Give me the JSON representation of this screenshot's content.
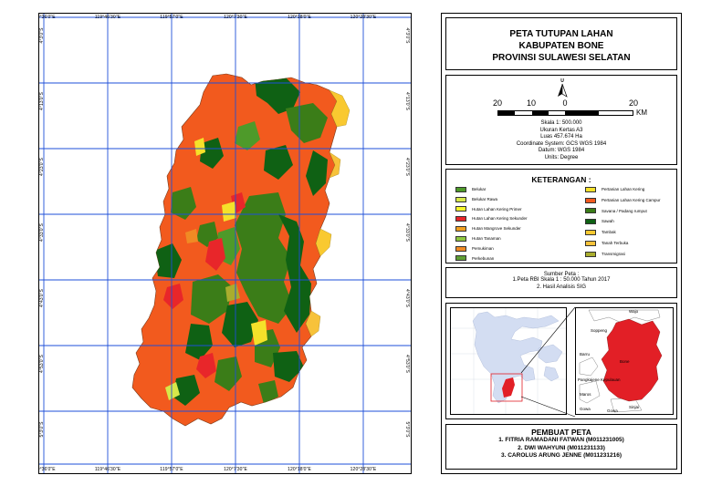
{
  "map": {
    "coords_top": [
      "119°36'0\"E",
      "119°46'30\"E",
      "119°57'0\"E",
      "120°7'30\"E",
      "120°18'0\"E",
      "120°28'30\"E"
    ],
    "coords_bottom": [
      "119°36'0\"E",
      "119°46'30\"E",
      "119°57'0\"E",
      "120°7'30\"E",
      "120°18'0\"E",
      "120°28'30\"E"
    ],
    "coords_left": [
      "4°3'0\"S",
      "4°13'0\"S",
      "4°23'0\"S",
      "4°33'0\"S",
      "4°43'0\"S",
      "4°53'0\"S",
      "5°3'0\"S",
      "5°13'0\"S"
    ],
    "coords_right": [
      "4°3'0\"S",
      "4°13'0\"S",
      "4°23'0\"S",
      "4°33'0\"S",
      "4°43'0\"S",
      "4°53'0\"S",
      "5°3'0\"S",
      "5°13'0\"S"
    ],
    "colors": {
      "grid": "#1e4fd8",
      "pertanian_campur": "#f25a1e",
      "savana": "#3b7d18",
      "sawah": "#0f6114",
      "belukar": "#4e9a2a",
      "pertanian_kering": "#f5e12a",
      "tanah_terbuka": "#f7c23a",
      "tambak": "#f9c930",
      "pemukiman": "#f08a24",
      "hutan_sekunder": "#e8262a",
      "transmigrasi": "#a9ad2e",
      "belukar_rawa": "#d6e84a"
    }
  },
  "title": {
    "line1": "PETA TUTUPAN LAHAN",
    "line2": "KABUPATEN BONE",
    "line3": "PROVINSI SULAWESI SELATAN"
  },
  "scale": {
    "north_label": "U",
    "labels": [
      "20",
      "10",
      "0",
      "20"
    ],
    "unit": "KM",
    "info": [
      "Skala 1: 500.000",
      "Ukuran Kertas A3",
      "Luas 457.674 Ha",
      "Coordinate System: GCS WGS 1984",
      "Datum: WGS 1984",
      "Units: Degree"
    ]
  },
  "legend": {
    "title": "KETERANGAN :",
    "left": [
      {
        "label": "Belukar",
        "color": "#4e9a2a"
      },
      {
        "label": "Belukar Rawa",
        "color": "#d6e84a"
      },
      {
        "label": "Hutan Lahan Kering Primer",
        "color": "#f5f52a"
      },
      {
        "label": "Hutan Lahan Kering Sekunder",
        "color": "#e8262a"
      },
      {
        "label": "Hutan Mangrove Sekunder",
        "color": "#f0a020"
      },
      {
        "label": "Hutan Tanaman",
        "color": "#8ec63f"
      },
      {
        "label": "Pemukiman",
        "color": "#f08a24"
      },
      {
        "label": "Perkebunan",
        "color": "#5f9e34"
      }
    ],
    "right": [
      {
        "label": "Pertanian Lahan Kering",
        "color": "#f5e12a"
      },
      {
        "label": "Pertanian Lahan Kering Campur",
        "color": "#f25a1e"
      },
      {
        "label": "Savana / Padang rumput",
        "color": "#3b7d18"
      },
      {
        "label": "Sawah",
        "color": "#0f6114"
      },
      {
        "label": "Tambak",
        "color": "#f9c930"
      },
      {
        "label": "Tanah Terbuka",
        "color": "#f7c23a"
      },
      {
        "label": "Transmigrasi",
        "color": "#a9ad2e"
      }
    ]
  },
  "source": {
    "title": "Sumber Peta :",
    "lines": [
      "1.Peta RBI Skala 1 : 50.000 Tahun 2017",
      "2. Hasil Analisis SIG"
    ]
  },
  "inset": {
    "labels": [
      "Wajo",
      "Soppeng",
      "Barru",
      "Bone",
      "Pangkajene Kepulauan",
      "Maros",
      "Gowa",
      "Sinjai",
      "Gowa"
    ]
  },
  "maker": {
    "title": "PEMBUAT PETA",
    "members": [
      "1. FITRIA RAMADANI FATWAN (M011231005)",
      "2. DWI WAHYUNI (M011231133)",
      "3. CAROLUS ARUNG JENNE (M011231216)"
    ]
  }
}
